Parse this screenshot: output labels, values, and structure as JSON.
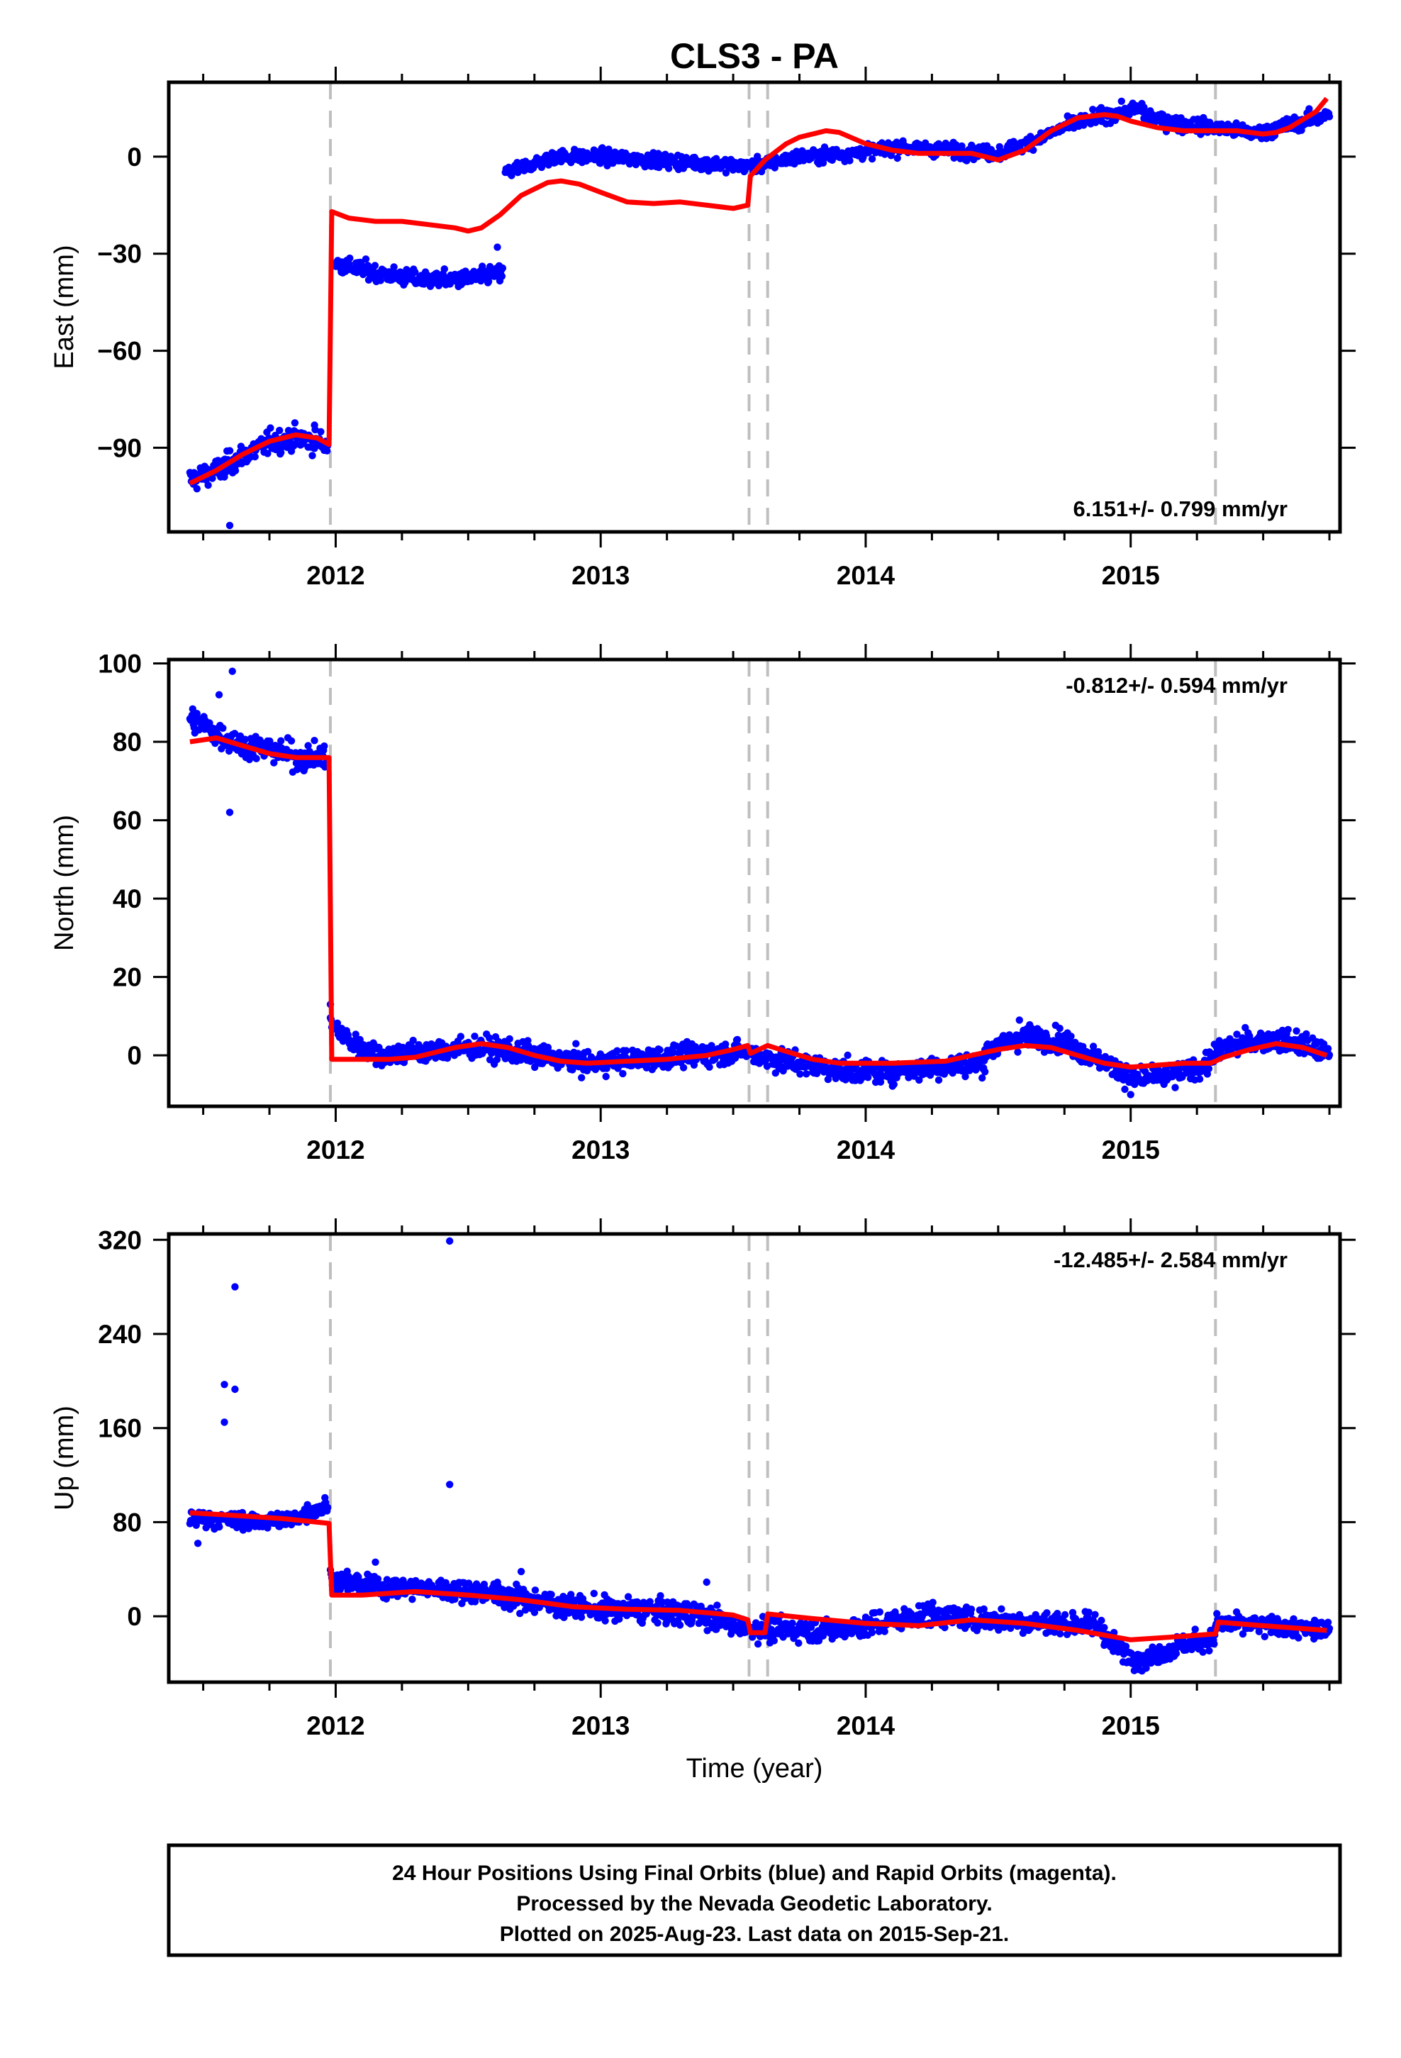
{
  "chart_data": {
    "type": "scatter",
    "title": "CLS3 - PA",
    "xlabel": "Time (year)",
    "xlim": [
      2011.37,
      2015.79
    ],
    "x_ticks": [
      "2012",
      "2013",
      "2014",
      "2015"
    ],
    "event_lines": [
      2011.98,
      2013.56,
      2013.63,
      2015.32
    ],
    "grid": false,
    "colors": {
      "points": "#0000ff",
      "model": "#ff0000",
      "event": "#bfbfbf"
    },
    "panels": [
      {
        "name": "east",
        "ylabel": "East (mm)",
        "ylim": [
          -116,
          23
        ],
        "y_ticks": [
          0,
          -30,
          -60,
          -90
        ],
        "rate": "6.151+/- 0.799 mm/yr",
        "rate_position": "bottom-right",
        "series": [
          {
            "type": "line",
            "x": [
              2011.45,
              2011.55,
              2011.65,
              2011.75,
              2011.85,
              2011.93,
              2011.975,
              2011.985,
              2012.05,
              2012.15,
              2012.25,
              2012.35,
              2012.45,
              2012.5,
              2012.55,
              2012.62,
              2012.7,
              2012.8,
              2012.85,
              2012.92,
              2013.0,
              2013.1,
              2013.2,
              2013.3,
              2013.4,
              2013.5,
              2013.555,
              2013.565,
              2013.62,
              2013.7,
              2013.75,
              2013.8,
              2013.85,
              2013.9,
              2014.0,
              2014.1,
              2014.2,
              2014.3,
              2014.4,
              2014.45,
              2014.5,
              2014.6,
              2014.7,
              2014.8,
              2014.9,
              2014.95,
              2015.0,
              2015.1,
              2015.2,
              2015.3,
              2015.4,
              2015.5,
              2015.55,
              2015.6,
              2015.7,
              2015.74
            ],
            "y": [
              -101,
              -97,
              -92,
              -88,
              -86,
              -87,
              -89,
              -17,
              -19,
              -20,
              -20,
              -21,
              -22,
              -23,
              -22,
              -18,
              -12,
              -8,
              -7.5,
              -8.5,
              -11,
              -14,
              -14.5,
              -14,
              -15,
              -16,
              -15,
              -6,
              -1,
              4,
              6,
              7,
              8,
              7.5,
              4,
              2,
              1,
              1,
              1,
              0,
              -1,
              2,
              8,
              12,
              13,
              12.5,
              11,
              9,
              8,
              8,
              8,
              7,
              7.5,
              9,
              14,
              18
            ]
          },
          {
            "type": "scatter",
            "segments": [
              {
                "x0": 2011.45,
                "x1": 2011.97,
                "y": [
                  -100,
                  -97,
                  -92,
                  -88,
                  -87,
                  -89
                ],
                "noise": 2.5
              },
              {
                "x0": 2012.0,
                "x1": 2012.63,
                "y": [
                  -33,
                  -36,
                  -38,
                  -38,
                  -36
                ],
                "noise": 1.8
              },
              {
                "x0": 2012.64,
                "x1": 2013.56,
                "y": [
                  -5,
                  0,
                  0,
                  -1,
                  -2,
                  -3
                ],
                "noise": 1.5
              },
              {
                "x0": 2013.57,
                "x1": 2014.5,
                "y": [
                  -3,
                  0,
                  1,
                  3,
                  2,
                  1
                ],
                "noise": 1.5
              },
              {
                "x0": 2014.5,
                "x1": 2015.05,
                "y": [
                  1,
                  5,
                  10,
                  13,
                  15
                ],
                "noise": 1.5
              },
              {
                "x0": 2015.05,
                "x1": 2015.75,
                "y": [
                  13,
                  10,
                  9,
                  7,
                  10,
                  13
                ],
                "noise": 1.6
              }
            ],
            "outliers": [
              [
                2011.6,
                -114
              ],
              [
                2011.58,
                -99
              ],
              [
                2012.61,
                -28
              ],
              [
                2011.92,
                -83
              ]
            ]
          }
        ]
      },
      {
        "name": "north",
        "ylabel": "North (mm)",
        "ylim": [
          -13,
          101
        ],
        "y_ticks": [
          100,
          80,
          60,
          40,
          20,
          0
        ],
        "rate": "-0.812+/- 0.594 mm/yr",
        "rate_position": "top-right",
        "series": [
          {
            "type": "line",
            "x": [
              2011.45,
              2011.55,
              2011.65,
              2011.75,
              2011.85,
              2011.975,
              2011.985,
              2012.1,
              2012.2,
              2012.3,
              2012.45,
              2012.55,
              2012.65,
              2012.75,
              2012.85,
              2012.95,
              2013.1,
              2013.25,
              2013.4,
              2013.5,
              2013.555,
              2013.565,
              2013.63,
              2013.7,
              2013.8,
              2013.9,
              2014.1,
              2014.3,
              2014.5,
              2014.6,
              2014.7,
              2014.8,
              2014.9,
              2015.0,
              2015.1,
              2015.2,
              2015.3,
              2015.32,
              2015.35,
              2015.45,
              2015.55,
              2015.65,
              2015.74
            ],
            "y": [
              80,
              81,
              79,
              77,
              76,
              76,
              -1,
              -1,
              -1,
              -0.5,
              2,
              3,
              2,
              0,
              -1.5,
              -2,
              -1.5,
              -1,
              0,
              1.5,
              2.5,
              0.5,
              2.5,
              1,
              -1,
              -2,
              -2,
              -1.5,
              1.5,
              2.5,
              2,
              0,
              -2,
              -3,
              -2.5,
              -2,
              -2,
              -1.5,
              -0.5,
              1.5,
              3,
              2,
              0
            ]
          },
          {
            "type": "scatter",
            "segments": [
              {
                "x0": 2011.45,
                "x1": 2011.97,
                "y": [
                  86,
                  82,
                  79,
                  78,
                  76,
                  76
                ],
                "noise": 2.3
              },
              {
                "x0": 2011.98,
                "x1": 2012.15,
                "y": [
                  8,
                  3,
                  1
                ],
                "noise": 2
              },
              {
                "x0": 2012.15,
                "x1": 2013.55,
                "y": [
                  0,
                  1,
                  2,
                  0,
                  -2,
                  -1,
                  0,
                  1
                ],
                "noise": 2
              },
              {
                "x0": 2013.57,
                "x1": 2014.45,
                "y": [
                  0,
                  -2,
                  -4,
                  -4,
                  -3,
                  -2
                ],
                "noise": 2
              },
              {
                "x0": 2014.45,
                "x1": 2015.3,
                "y": [
                  1,
                  5,
                  4,
                  -1,
                  -6,
                  -5,
                  -2
                ],
                "noise": 2
              },
              {
                "x0": 2015.3,
                "x1": 2015.75,
                "y": [
                  0,
                  3,
                  4,
                  3,
                  0
                ],
                "noise": 2
              }
            ],
            "outliers": [
              [
                2011.61,
                98
              ],
              [
                2011.6,
                62
              ],
              [
                2011.56,
                92
              ],
              [
                2011.98,
                13
              ],
              [
                2014.58,
                9
              ],
              [
                2015.0,
                -10
              ]
            ]
          }
        ]
      },
      {
        "name": "up",
        "ylabel": "Up (mm)",
        "ylim": [
          -56,
          325
        ],
        "y_ticks": [
          320,
          240,
          160,
          80,
          0
        ],
        "rate": "-12.485+/- 2.584 mm/yr",
        "rate_position": "top-right",
        "series": [
          {
            "type": "line",
            "x": [
              2011.45,
              2011.6,
              2011.8,
              2011.975,
              2011.985,
              2012.1,
              2012.3,
              2012.5,
              2012.7,
              2012.9,
              2013.1,
              2013.3,
              2013.5,
              2013.555,
              2013.565,
              2013.62,
              2013.63,
              2013.8,
              2014.0,
              2014.2,
              2014.4,
              2014.6,
              2014.8,
              2015.0,
              2015.2,
              2015.32,
              2015.33,
              2015.5,
              2015.74
            ],
            "y": [
              88,
              86,
              83,
              79,
              18,
              18,
              21,
              18,
              14,
              8,
              6,
              5,
              1,
              -3,
              -14,
              -14,
              2,
              -2,
              -6,
              -8,
              -3,
              -6,
              -12,
              -20,
              -17,
              -15,
              -5,
              -8,
              -12
            ]
          },
          {
            "type": "scatter",
            "segments": [
              {
                "x0": 2011.45,
                "x1": 2011.97,
                "y": [
                  84,
                  82,
                  80,
                  83,
                  95
                ],
                "noise": 5
              },
              {
                "x0": 2011.98,
                "x1": 2012.6,
                "y": [
                  32,
                  25,
                  24,
                  22,
                  21
                ],
                "noise": 6
              },
              {
                "x0": 2012.6,
                "x1": 2013.55,
                "y": [
                  18,
                  12,
                  6,
                  5,
                  2,
                  -10
                ],
                "noise": 7
              },
              {
                "x0": 2013.57,
                "x1": 2014.9,
                "y": [
                  -10,
                  -12,
                  -8,
                  2,
                  -3,
                  -5,
                  -8
                ],
                "noise": 7
              },
              {
                "x0": 2014.9,
                "x1": 2015.32,
                "y": [
                  -20,
                  -38,
                  -25,
                  -18
                ],
                "noise": 6
              },
              {
                "x0": 2015.32,
                "x1": 2015.75,
                "y": [
                  -6,
                  -8,
                  -10,
                  -12
                ],
                "noise": 6
              }
            ],
            "outliers": [
              [
                2012.43,
                319
              ],
              [
                2011.62,
                280
              ],
              [
                2011.58,
                197
              ],
              [
                2011.62,
                193
              ],
              [
                2011.58,
                165
              ],
              [
                2012.43,
                112
              ],
              [
                2011.48,
                62
              ],
              [
                2012.15,
                46
              ],
              [
                2012.7,
                38
              ],
              [
                2013.4,
                29
              ]
            ]
          }
        ]
      }
    ]
  },
  "footer": {
    "line1": "24 Hour Positions Using Final Orbits (blue) and Rapid Orbits (magenta).",
    "line2": "Processed by the Nevada Geodetic Laboratory.",
    "line3": "Plotted on 2025-Aug-23. Last data on 2015-Sep-21."
  }
}
